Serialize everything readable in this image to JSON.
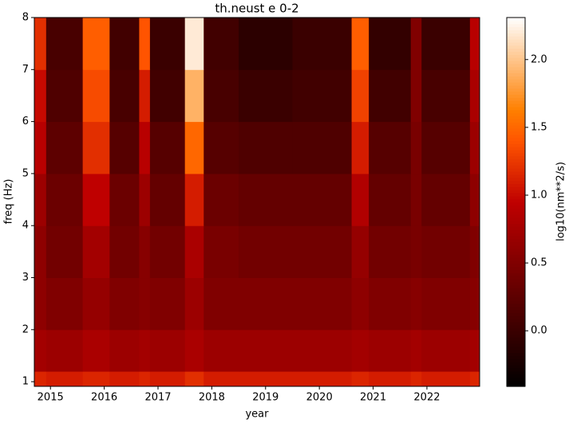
{
  "chart_data": {
    "type": "heatmap",
    "title": "th.neust e 0-2",
    "xlabel": "year",
    "ylabel": "freq (Hz)",
    "colorbar_label": "log10(nm**2/s)",
    "colormap": "gist_heat",
    "x": [
      2014.7,
      2014.92,
      2015.6,
      2016.1,
      2016.65,
      2016.85,
      2017.5,
      2017.85,
      2018.5,
      2019.5,
      2020.6,
      2020.92,
      2021.7,
      2021.9,
      2022.8,
      2022.98
    ],
    "y": [
      0.91,
      1.2,
      2,
      3,
      4,
      5,
      6,
      7,
      8
    ],
    "z": [
      [
        1.15,
        1.1,
        1.15,
        1.1,
        1.15,
        1.1,
        1.2,
        1.1,
        1.1,
        1.1,
        1.15,
        1.1,
        1.15,
        1.1,
        1.15
      ],
      [
        0.75,
        0.7,
        0.8,
        0.7,
        0.75,
        0.7,
        0.8,
        0.7,
        0.7,
        0.7,
        0.75,
        0.7,
        0.75,
        0.7,
        0.75
      ],
      [
        0.6,
        0.5,
        0.65,
        0.5,
        0.55,
        0.5,
        0.7,
        0.5,
        0.5,
        0.5,
        0.6,
        0.5,
        0.55,
        0.5,
        0.55
      ],
      [
        0.6,
        0.4,
        0.75,
        0.4,
        0.55,
        0.4,
        0.8,
        0.45,
        0.4,
        0.4,
        0.65,
        0.4,
        0.45,
        0.4,
        0.5
      ],
      [
        0.7,
        0.35,
        0.95,
        0.35,
        0.7,
        0.3,
        1.1,
        0.35,
        0.3,
        0.3,
        0.85,
        0.3,
        0.45,
        0.3,
        0.6
      ],
      [
        0.9,
        0.25,
        1.2,
        0.2,
        0.9,
        0.2,
        1.5,
        0.2,
        0.15,
        0.15,
        1.1,
        0.2,
        0.45,
        0.2,
        0.7
      ],
      [
        1.0,
        0.15,
        1.35,
        0.1,
        1.1,
        0.05,
        1.9,
        0.1,
        0.0,
        0.05,
        1.3,
        0.05,
        0.5,
        0.1,
        0.8
      ],
      [
        1.2,
        0.1,
        1.45,
        0.05,
        1.4,
        0.0,
        2.2,
        0.05,
        -0.1,
        0.0,
        1.45,
        -0.05,
        0.5,
        0.0,
        0.9
      ]
    ],
    "xlim": [
      2014.7,
      2022.98
    ],
    "xticks": [
      2015,
      2016,
      2017,
      2018,
      2019,
      2020,
      2021,
      2022
    ],
    "ylim": [
      0.91,
      8
    ],
    "yticks": [
      1,
      2,
      3,
      4,
      5,
      6,
      7,
      8
    ],
    "clim": [
      -0.41,
      2.31
    ],
    "cticks": [
      {
        "value": 0,
        "label": "0.0"
      },
      {
        "value": 0.5,
        "label": "0.5"
      },
      {
        "value": 1,
        "label": "1.0"
      },
      {
        "value": 1.5,
        "label": "1.5"
      },
      {
        "value": 2,
        "label": "2.0"
      }
    ]
  }
}
